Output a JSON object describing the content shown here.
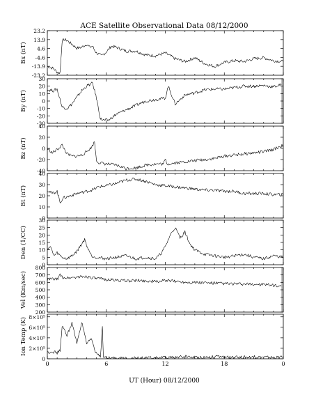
{
  "chart_data": {
    "type": "line",
    "title": "ACE Satellite Observational Data",
    "date": "08/12/2000",
    "xlabel": "UT (Hour)",
    "x_ticks": [
      "0",
      "6",
      "12",
      "18",
      "0"
    ],
    "xlim": [
      0,
      24
    ],
    "panels": [
      {
        "id": "bx",
        "ylabel": "Bx (nT)",
        "ylim": [
          -23.2,
          23.2
        ],
        "y_ticks": [
          "23.2",
          "13.9",
          "4.6",
          "-4.6",
          "-13.9",
          "-23.2"
        ],
        "y_tick_values": [
          23.2,
          13.9,
          4.6,
          -4.6,
          -13.9,
          -23.2
        ],
        "series": [
          {
            "x": [
              0,
              0.6,
              1.1,
              1.3,
              1.5,
              1.7,
              2.0,
              2.5,
              3.0,
              3.5,
              4.0,
              4.3,
              4.6,
              4.8,
              5.0,
              5.5,
              6.0,
              6.5,
              7.0,
              7.5,
              8.0,
              9.0,
              10.0,
              11.0,
              12.0,
              13.0,
              14.0,
              15.0,
              16.0,
              17.0,
              18.0,
              19.0,
              20.0,
              21.0,
              22.0,
              23.0,
              24.0
            ],
            "y": [
              -14,
              -16,
              -21,
              -20,
              12,
              14,
              13,
              9,
              5,
              6,
              9,
              6,
              7,
              3,
              0,
              -3,
              1,
              7,
              6,
              4,
              2,
              2,
              -2,
              -3,
              0,
              -6,
              -9,
              -5,
              -11,
              -14,
              -10,
              -8,
              -9,
              -6,
              -5,
              -8,
              -9
            ]
          }
        ],
        "gap_after_x": null
      },
      {
        "id": "by",
        "ylabel": "By (nT)",
        "ylim": [
          -30,
          30
        ],
        "y_ticks": [
          "30",
          "20",
          "10",
          "0",
          "-10",
          "-20",
          "-30"
        ],
        "y_tick_values": [
          30,
          20,
          10,
          0,
          -10,
          -20,
          -30
        ],
        "series": [
          {
            "x": [
              0,
              0.6,
              1.0,
              1.5,
              2.0,
              2.5,
              3.0,
              3.5,
              4.0,
              4.6,
              5.0,
              5.4,
              5.8,
              6.2,
              7.0,
              8.0,
              9.0,
              10.0,
              11.0,
              12.0,
              12.3,
              13.0,
              14.0,
              15.0,
              16.0,
              17.0,
              18.0,
              19.0,
              20.0,
              21.0,
              22.0,
              23.0,
              23.8
            ],
            "y": [
              15,
              14,
              16,
              -8,
              -10,
              -4,
              5,
              14,
              20,
              24,
              4,
              -24,
              -26,
              -26,
              -18,
              -12,
              -6,
              0,
              2,
              4,
              20,
              -4,
              8,
              11,
              15,
              16,
              16,
              18,
              20,
              20,
              21,
              19,
              22
            ]
          }
        ],
        "gap_after_x": 23.8
      },
      {
        "id": "bz",
        "ylabel": "Bz (nT)",
        "ylim": [
          -40,
          40
        ],
        "y_ticks": [
          "40",
          "20",
          "0",
          "-20",
          "-40"
        ],
        "y_tick_values": [
          40,
          20,
          0,
          -20,
          -40
        ],
        "series": [
          {
            "x": [
              0,
              0.5,
              1.0,
              1.5,
              2.0,
              2.5,
              3.0,
              3.5,
              4.0,
              4.5,
              4.8,
              5.0,
              5.3,
              6.0,
              7.0,
              8.0,
              9.0,
              10.0,
              11.0,
              11.8,
              12.0,
              12.2,
              13.0,
              14.0,
              15.0,
              16.0,
              17.0,
              18.0,
              19.0,
              20.0,
              21.0,
              22.0,
              23.0,
              24.0
            ],
            "y": [
              0,
              -8,
              -2,
              6,
              -10,
              -14,
              -14,
              -12,
              -6,
              2,
              12,
              -22,
              -26,
              -28,
              -30,
              -36,
              -35,
              -30,
              -28,
              -28,
              -20,
              -28,
              -26,
              -24,
              -22,
              -20,
              -18,
              -14,
              -12,
              -10,
              -8,
              -6,
              -2,
              6
            ]
          }
        ],
        "gap_after_x": null
      },
      {
        "id": "bt",
        "ylabel": "Bt (nT)",
        "ylim": [
          0,
          40
        ],
        "y_ticks": [
          "40",
          "30",
          "20",
          "10",
          "0"
        ],
        "y_tick_values": [
          40,
          30,
          20,
          10,
          0
        ],
        "series": [
          {
            "x": [
              0,
              0.5,
              1.0,
              1.3,
              1.6,
              2.0,
              3.0,
              4.0,
              4.8,
              5.2,
              6.0,
              7.0,
              8.0,
              9.0,
              10.0,
              11.0,
              12.0,
              13.0,
              14.0,
              15.0,
              16.0,
              17.0,
              18.0,
              19.0,
              20.0,
              21.0,
              22.0,
              23.0,
              24.0
            ],
            "y": [
              25,
              22,
              24,
              14,
              18,
              19,
              22,
              24,
              26,
              28,
              29,
              31,
              34,
              35,
              33,
              30,
              29,
              28,
              27,
              26,
              25,
              25,
              24,
              24,
              22,
              22,
              22,
              21,
              21
            ]
          }
        ],
        "gap_after_x": null
      },
      {
        "id": "den",
        "ylabel": "Den (1/CC)",
        "ylim": [
          0,
          30
        ],
        "y_ticks": [
          "30",
          "25",
          "20",
          "15",
          "10",
          "5",
          "0"
        ],
        "y_tick_values": [
          30,
          25,
          20,
          15,
          10,
          5,
          0
        ],
        "series": [
          {
            "x": [
              0,
              0.3,
              0.7,
              1.0,
              1.5,
              2.0,
              2.5,
              3.0,
              3.5,
              3.8,
              4.0,
              4.5,
              5.0,
              6.0,
              7.0,
              8.0,
              9.0,
              10.0,
              11.0,
              11.5,
              12.0,
              12.5,
              13.0,
              13.5,
              14.0,
              14.5,
              15.0,
              16.0,
              17.0,
              18.0,
              19.0,
              20.0,
              21.0,
              22.0,
              23.0,
              24.0
            ],
            "y": [
              11,
              12,
              6,
              8,
              5,
              4,
              6,
              9,
              14,
              17,
              13,
              6,
              5,
              4,
              5,
              6,
              4,
              5,
              4,
              7,
              12,
              20,
              25,
              18,
              22,
              14,
              10,
              7,
              6,
              5,
              6,
              7,
              5,
              4,
              6,
              5
            ]
          }
        ],
        "gap_after_x": null
      },
      {
        "id": "vel",
        "ylabel": "Vel (Km/sec)",
        "ylim": [
          200,
          800
        ],
        "y_ticks": [
          "800",
          "700",
          "600",
          "500",
          "400",
          "300",
          "200"
        ],
        "y_tick_values": [
          800,
          700,
          600,
          500,
          400,
          300,
          200
        ],
        "series": [
          {
            "x": [
              0,
              0.5,
              1.0,
              1.3,
              1.5,
              2.0,
              3.0,
              4.0,
              5.0,
              6.0,
              7.0,
              8.0,
              9.0,
              10.0,
              11.0,
              12.0,
              13.0,
              14.0,
              15.0,
              16.0,
              17.0,
              18.0,
              19.0,
              20.0,
              21.0,
              22.0,
              23.0,
              23.8
            ],
            "y": [
              640,
              645,
              640,
              700,
              670,
              660,
              670,
              680,
              650,
              640,
              630,
              620,
              625,
              620,
              610,
              625,
              615,
              605,
              600,
              595,
              590,
              585,
              580,
              575,
              575,
              570,
              560,
              550
            ]
          }
        ],
        "gap_after_x": 23.8
      },
      {
        "id": "temp",
        "ylabel": "Ion Temp (K)",
        "ylim": [
          0,
          850000
        ],
        "y_ticks": [
          "8×10⁵",
          "6×10⁵",
          "4×10⁵",
          "2×10⁵",
          "0"
        ],
        "y_tick_values": [
          800000,
          600000,
          400000,
          200000,
          0
        ],
        "series": [
          {
            "x": [
              0,
              0.5,
              1.0,
              1.3,
              1.5,
              2.0,
              2.5,
              3.0,
              3.5,
              4.0,
              4.5,
              4.9,
              5.2,
              5.4,
              5.6,
              5.7,
              6.0,
              7.0,
              8.0,
              9.0,
              10.0,
              11.0,
              12.0,
              13.0,
              14.0,
              15.0,
              16.0,
              17.0,
              18.0,
              19.0,
              20.0,
              21.0,
              22.0,
              23.0,
              24.0
            ],
            "y": [
              120000,
              140000,
              110000,
              160000,
              620000,
              450000,
              680000,
              300000,
              700000,
              280000,
              380000,
              120000,
              90000,
              40000,
              620000,
              30000,
              15000,
              10000,
              10000,
              12000,
              15000,
              15000,
              20000,
              25000,
              40000,
              30000,
              30000,
              40000,
              30000,
              25000,
              30000,
              35000,
              30000,
              25000,
              30000
            ]
          }
        ],
        "gap_after_x": null
      }
    ]
  }
}
